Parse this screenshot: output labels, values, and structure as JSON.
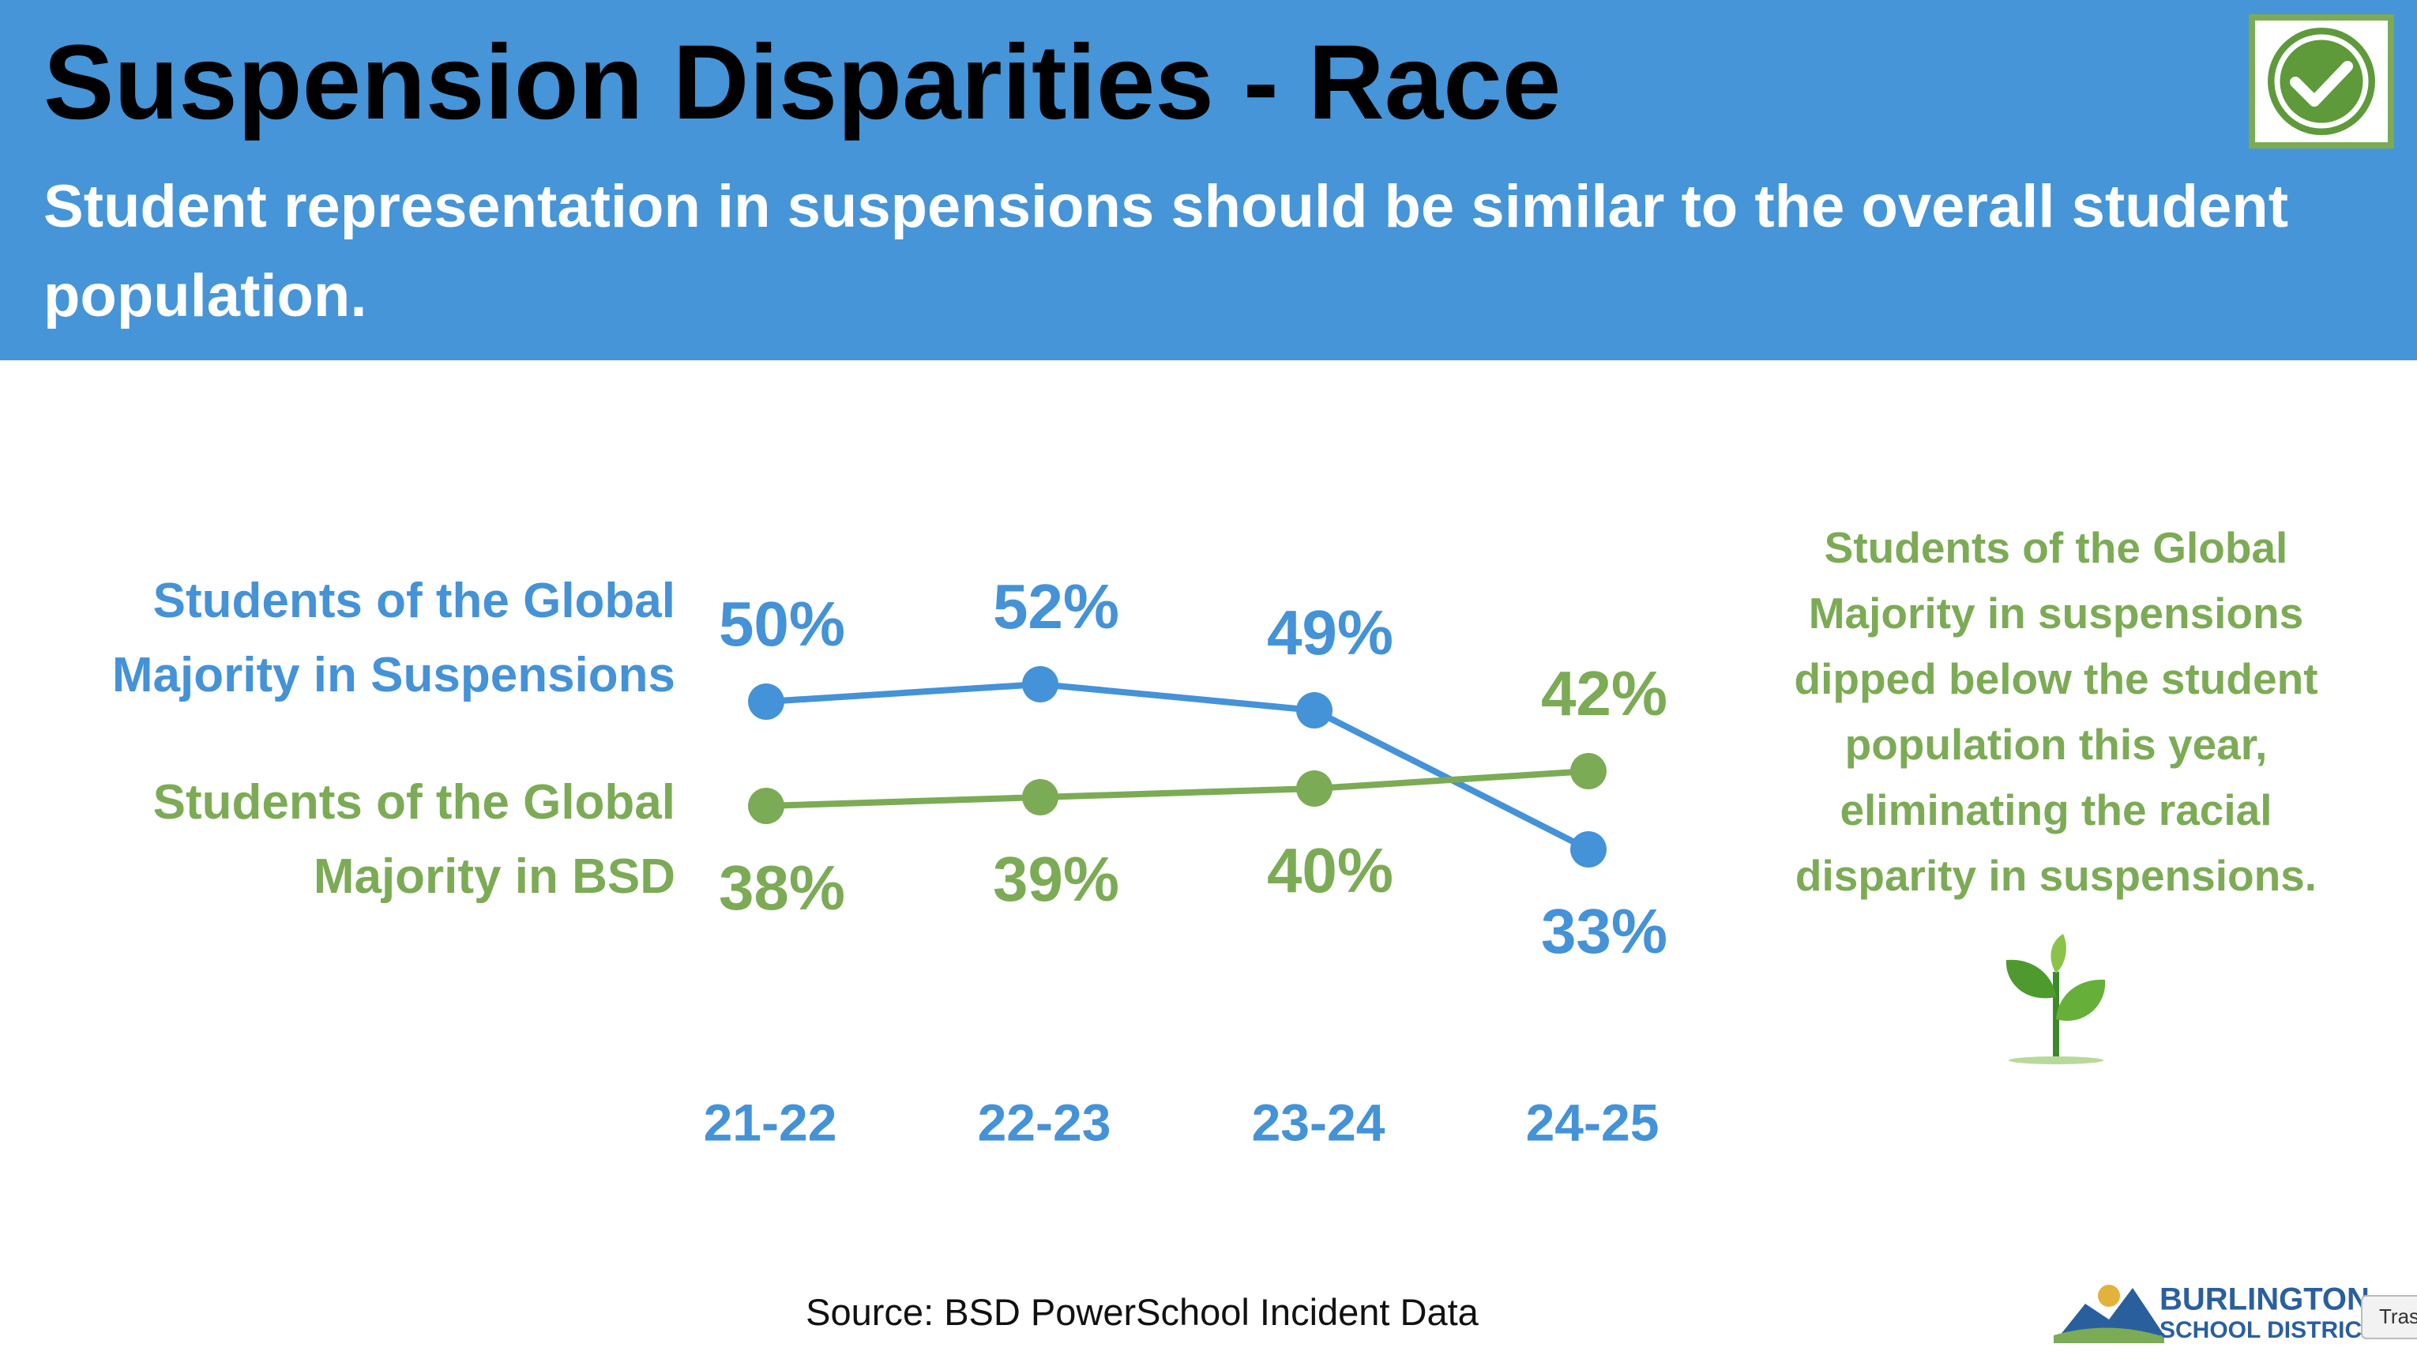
{
  "chart_data": {
    "type": "line",
    "title": "Suspension Disparities - Race",
    "subtitle": "Student representation in suspensions should be similar to the overall student population.",
    "categories": [
      "21-22",
      "22-23",
      "23-24",
      "24-25"
    ],
    "series": [
      {
        "name": "Students of the Global Majority in Suspensions",
        "color": "#4492d8",
        "values": [
          50,
          52,
          49,
          33
        ],
        "value_labels": [
          "50%",
          "52%",
          "49%",
          "33%"
        ]
      },
      {
        "name": "Students of the Global Majority in BSD",
        "color": "#7cab55",
        "values": [
          38,
          39,
          40,
          42
        ],
        "value_labels": [
          "38%",
          "39%",
          "40%",
          "42%"
        ]
      }
    ],
    "annotation": "Students of the Global Majority in suspensions dipped below the student population this year, eliminating the racial disparity in suspensions.",
    "source": "Source: BSD PowerSchool Incident Data",
    "logo": {
      "name": "BURLINGTON",
      "subtitle": "SCHOOL DISTRICT"
    },
    "tooltip": "Tras"
  }
}
